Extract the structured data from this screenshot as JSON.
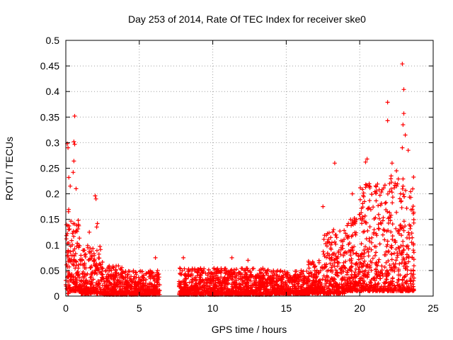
{
  "chart_data": {
    "type": "scatter",
    "title": "Day 253 of 2014, Rate Of TEC Index for receiver ske0",
    "xlabel": "GPS time / hours",
    "ylabel": "ROTI / TECUs",
    "xlim": [
      0,
      25
    ],
    "ylim": [
      0,
      0.5
    ],
    "xticks": [
      0,
      5,
      10,
      15,
      20,
      25
    ],
    "yticks": [
      0,
      0.05,
      0.1,
      0.15,
      0.2,
      0.25,
      0.3,
      0.35,
      0.4,
      0.45,
      0.5
    ],
    "grid": true,
    "marker": "plus",
    "color": "#ff0000",
    "notable_points": [
      {
        "x": 0.1,
        "y": 0.298
      },
      {
        "x": 0.15,
        "y": 0.29
      },
      {
        "x": 0.55,
        "y": 0.302
      },
      {
        "x": 0.6,
        "y": 0.297
      },
      {
        "x": 0.6,
        "y": 0.352
      },
      {
        "x": 0.55,
        "y": 0.264
      },
      {
        "x": 0.5,
        "y": 0.242
      },
      {
        "x": 0.2,
        "y": 0.232
      },
      {
        "x": 0.3,
        "y": 0.215
      },
      {
        "x": 0.7,
        "y": 0.21
      },
      {
        "x": 0.85,
        "y": 0.148
      },
      {
        "x": 2.0,
        "y": 0.196
      },
      {
        "x": 2.05,
        "y": 0.19
      },
      {
        "x": 2.1,
        "y": 0.135
      },
      {
        "x": 2.15,
        "y": 0.142
      },
      {
        "x": 1.6,
        "y": 0.125
      },
      {
        "x": 11.3,
        "y": 0.075
      },
      {
        "x": 12.4,
        "y": 0.07
      },
      {
        "x": 6.1,
        "y": 0.075
      },
      {
        "x": 8.0,
        "y": 0.075
      },
      {
        "x": 18.3,
        "y": 0.26
      },
      {
        "x": 21.9,
        "y": 0.379
      },
      {
        "x": 21.9,
        "y": 0.343
      },
      {
        "x": 22.9,
        "y": 0.454
      },
      {
        "x": 23.0,
        "y": 0.404
      },
      {
        "x": 23.0,
        "y": 0.357
      },
      {
        "x": 22.95,
        "y": 0.335
      },
      {
        "x": 23.1,
        "y": 0.315
      },
      {
        "x": 22.9,
        "y": 0.29
      },
      {
        "x": 23.3,
        "y": 0.285
      },
      {
        "x": 20.5,
        "y": 0.268
      },
      {
        "x": 20.4,
        "y": 0.262
      },
      {
        "x": 22.2,
        "y": 0.26
      },
      {
        "x": 22.5,
        "y": 0.245
      },
      {
        "x": 17.5,
        "y": 0.175
      },
      {
        "x": 19.5,
        "y": 0.2
      }
    ],
    "segments": [
      {
        "x_start": 0.0,
        "x_end": 0.2,
        "peak": 0.2,
        "base": 0.005
      },
      {
        "x_start": 0.2,
        "x_end": 1.0,
        "peak": 0.15,
        "base": 0.01
      },
      {
        "x_start": 1.0,
        "x_end": 2.5,
        "peak": 0.1,
        "base": 0.005
      },
      {
        "x_start": 2.5,
        "x_end": 4.0,
        "peak": 0.06,
        "base": 0.003
      },
      {
        "x_start": 4.0,
        "x_end": 6.4,
        "peak": 0.05,
        "base": 0.003
      },
      {
        "x_start": 7.7,
        "x_end": 10.0,
        "peak": 0.055,
        "base": 0.003
      },
      {
        "x_start": 10.0,
        "x_end": 14.0,
        "peak": 0.055,
        "base": 0.003
      },
      {
        "x_start": 14.0,
        "x_end": 16.5,
        "peak": 0.05,
        "base": 0.005
      },
      {
        "x_start": 16.5,
        "x_end": 17.5,
        "peak": 0.07,
        "base": 0.005
      },
      {
        "x_start": 17.5,
        "x_end": 19.0,
        "peak": 0.13,
        "base": 0.005
      },
      {
        "x_start": 19.0,
        "x_end": 20.0,
        "peak": 0.16,
        "base": 0.01
      },
      {
        "x_start": 20.0,
        "x_end": 21.0,
        "peak": 0.22,
        "base": 0.01
      },
      {
        "x_start": 21.0,
        "x_end": 22.0,
        "peak": 0.22,
        "base": 0.01
      },
      {
        "x_start": 22.0,
        "x_end": 23.0,
        "peak": 0.24,
        "base": 0.01
      },
      {
        "x_start": 23.0,
        "x_end": 23.7,
        "peak": 0.24,
        "base": 0.01
      }
    ]
  }
}
